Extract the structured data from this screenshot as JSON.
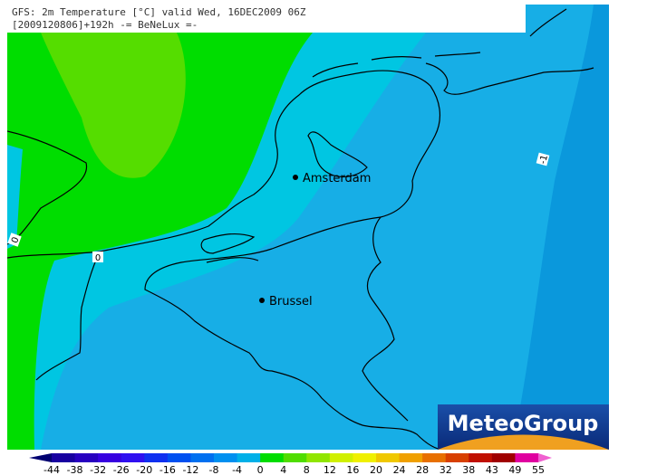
{
  "header": {
    "line1": "GFS: 2m Temperature [°C] valid Wed, 16DEC2009 06Z",
    "line2": "[2009120806]+192h -= BeNeLux =-"
  },
  "cities": [
    {
      "name": "Amsterdam"
    },
    {
      "name": "Brussel"
    }
  ],
  "contour_labels": [
    "0",
    "0",
    "-1"
  ],
  "legend": {
    "ticks": [
      -44,
      -38,
      -32,
      -26,
      -20,
      -16,
      -12,
      -8,
      -4,
      0,
      4,
      8,
      12,
      16,
      20,
      24,
      28,
      32,
      38,
      43,
      49,
      55
    ],
    "colors": [
      "#000070",
      "#1800a0",
      "#2800c0",
      "#3800e0",
      "#3010f0",
      "#1030f0",
      "#0050f0",
      "#0070f0",
      "#0090f0",
      "#00b0e8",
      "#00dd00",
      "#50dd00",
      "#90e600",
      "#d0f000",
      "#f0f000",
      "#f0c800",
      "#f0a000",
      "#e87000",
      "#d84000",
      "#c01000",
      "#a00000",
      "#e000a0",
      "#f060d0"
    ]
  },
  "logo": {
    "text": "MeteoGroup"
  }
}
